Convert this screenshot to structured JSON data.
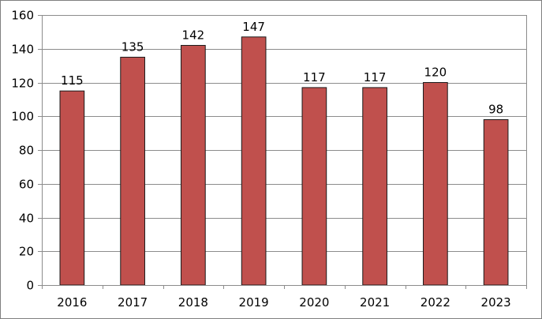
{
  "chart_data": {
    "type": "bar",
    "title": "",
    "xlabel": "",
    "ylabel": "",
    "categories": [
      "2016",
      "2017",
      "2018",
      "2019",
      "2020",
      "2021",
      "2022",
      "2023"
    ],
    "values": [
      115,
      135,
      142,
      147,
      117,
      117,
      120,
      98
    ],
    "data_labels": [
      "115",
      "135",
      "142",
      "147",
      "117",
      "117",
      "120",
      "98"
    ],
    "ylim": [
      0,
      160
    ],
    "y_ticks": [
      0,
      20,
      40,
      60,
      80,
      100,
      120,
      140,
      160
    ],
    "y_tick_labels": [
      "0",
      "20",
      "40",
      "60",
      "80",
      "100",
      "120",
      "140",
      "160"
    ],
    "grid": true,
    "legend": false,
    "bar_color": "#c0504d"
  }
}
